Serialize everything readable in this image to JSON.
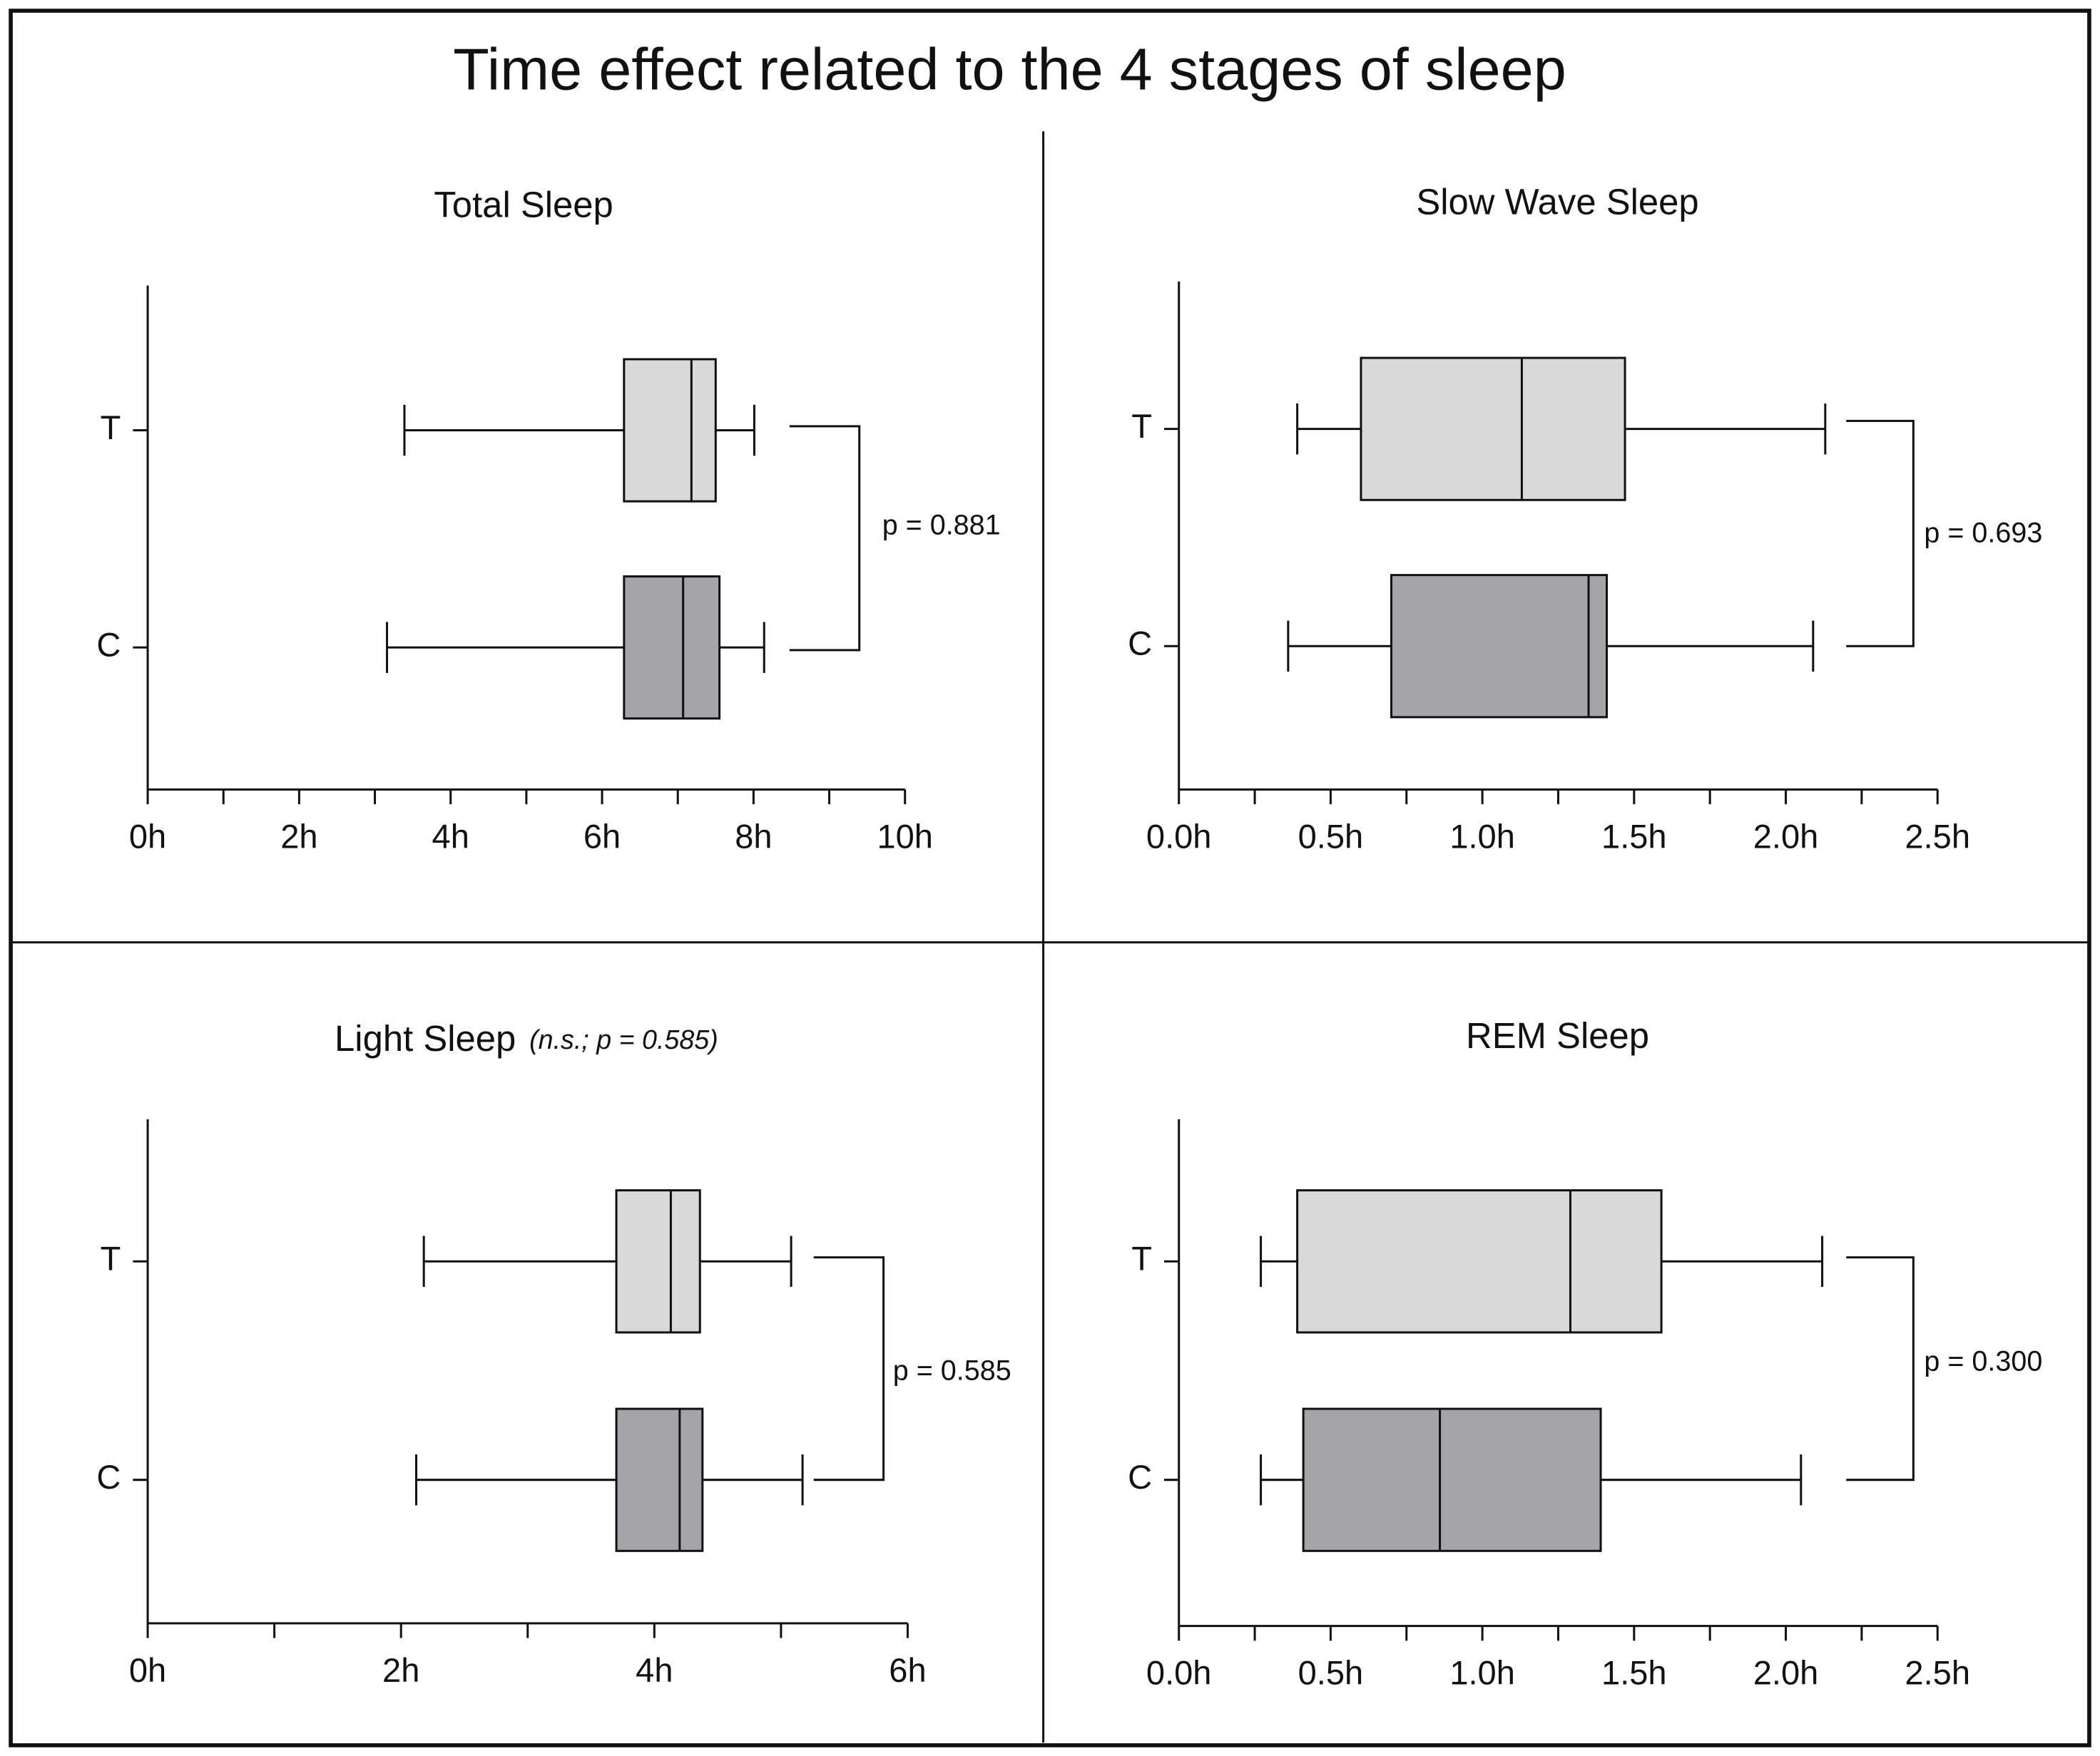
{
  "title": "Time effect related to the 4 stages of sleep",
  "chart_data": [
    {
      "type": "box",
      "title": "Total Sleep",
      "categories": [
        "T",
        "C"
      ],
      "boxes": [
        {
          "min": 3.39,
          "q1": 6.29,
          "median": 7.18,
          "q3": 7.5,
          "max": 8.01,
          "color": "#d9d9d9"
        },
        {
          "min": 3.16,
          "q1": 6.29,
          "median": 7.07,
          "q3": 7.55,
          "max": 8.14,
          "color": "#a5a4a8"
        }
      ],
      "xlim": [
        0,
        10
      ],
      "xticks": [
        {
          "value": 0,
          "label": "0h"
        },
        {
          "value": 2,
          "label": "2h"
        },
        {
          "value": 4,
          "label": "4h"
        },
        {
          "value": 6,
          "label": "6h"
        },
        {
          "value": 8,
          "label": "8h"
        },
        {
          "value": 10,
          "label": "10h"
        }
      ],
      "xminorticks": [
        1,
        3,
        5,
        7,
        9
      ],
      "annotation": "p = 0.881"
    },
    {
      "type": "box",
      "title": "Slow Wave Sleep",
      "categories": [
        "T",
        "C"
      ],
      "boxes": [
        {
          "min": 0.39,
          "q1": 0.6,
          "median": 1.13,
          "q3": 1.47,
          "max": 2.13,
          "color": "#d9d9d9"
        },
        {
          "min": 0.36,
          "q1": 0.7,
          "median": 1.35,
          "q3": 1.41,
          "max": 2.09,
          "color": "#a5a4a8"
        }
      ],
      "xlim": [
        0,
        2.5
      ],
      "xticks": [
        {
          "value": 0,
          "label": "0.0h"
        },
        {
          "value": 0.5,
          "label": "0.5h"
        },
        {
          "value": 1,
          "label": "1.0h"
        },
        {
          "value": 1.5,
          "label": "1.5h"
        },
        {
          "value": 2,
          "label": "2.0h"
        },
        {
          "value": 2.5,
          "label": "2.5h"
        }
      ],
      "xminorticks": [
        0.25,
        0.75,
        1.25,
        1.75,
        2.25
      ],
      "annotation": "p = 0.693"
    },
    {
      "type": "box",
      "title": "Light Sleep",
      "subtitle": "(n.s.; p = 0.585)",
      "categories": [
        "T",
        "C"
      ],
      "boxes": [
        {
          "min": 2.18,
          "q1": 3.7,
          "median": 4.13,
          "q3": 4.36,
          "max": 5.08,
          "color": "#d9d9d9"
        },
        {
          "min": 2.12,
          "q1": 3.7,
          "median": 4.2,
          "q3": 4.38,
          "max": 5.17,
          "color": "#a5a4a8"
        }
      ],
      "xlim": [
        0,
        6
      ],
      "xticks": [
        {
          "value": 0,
          "label": "0h"
        },
        {
          "value": 2,
          "label": "2h"
        },
        {
          "value": 4,
          "label": "4h"
        },
        {
          "value": 6,
          "label": "6h"
        }
      ],
      "xminorticks": [
        1,
        3,
        5
      ],
      "annotation": "p = 0.585"
    },
    {
      "type": "box",
      "title": "REM Sleep",
      "categories": [
        "T",
        "C"
      ],
      "boxes": [
        {
          "min": 0.27,
          "q1": 0.39,
          "median": 1.29,
          "q3": 1.59,
          "max": 2.12,
          "color": "#d9d9d9"
        },
        {
          "min": 0.27,
          "q1": 0.41,
          "median": 0.86,
          "q3": 1.39,
          "max": 2.05,
          "color": "#a5a4a8"
        }
      ],
      "xlim": [
        0,
        2.5
      ],
      "xticks": [
        {
          "value": 0,
          "label": "0.0h"
        },
        {
          "value": 0.5,
          "label": "0.5h"
        },
        {
          "value": 1,
          "label": "1.0h"
        },
        {
          "value": 1.5,
          "label": "1.5h"
        },
        {
          "value": 2,
          "label": "2.0h"
        },
        {
          "value": 2.5,
          "label": "2.5h"
        }
      ],
      "xminorticks": [
        0.25,
        0.75,
        1.25,
        1.75,
        2.25
      ],
      "annotation": "p = 0.300"
    }
  ]
}
